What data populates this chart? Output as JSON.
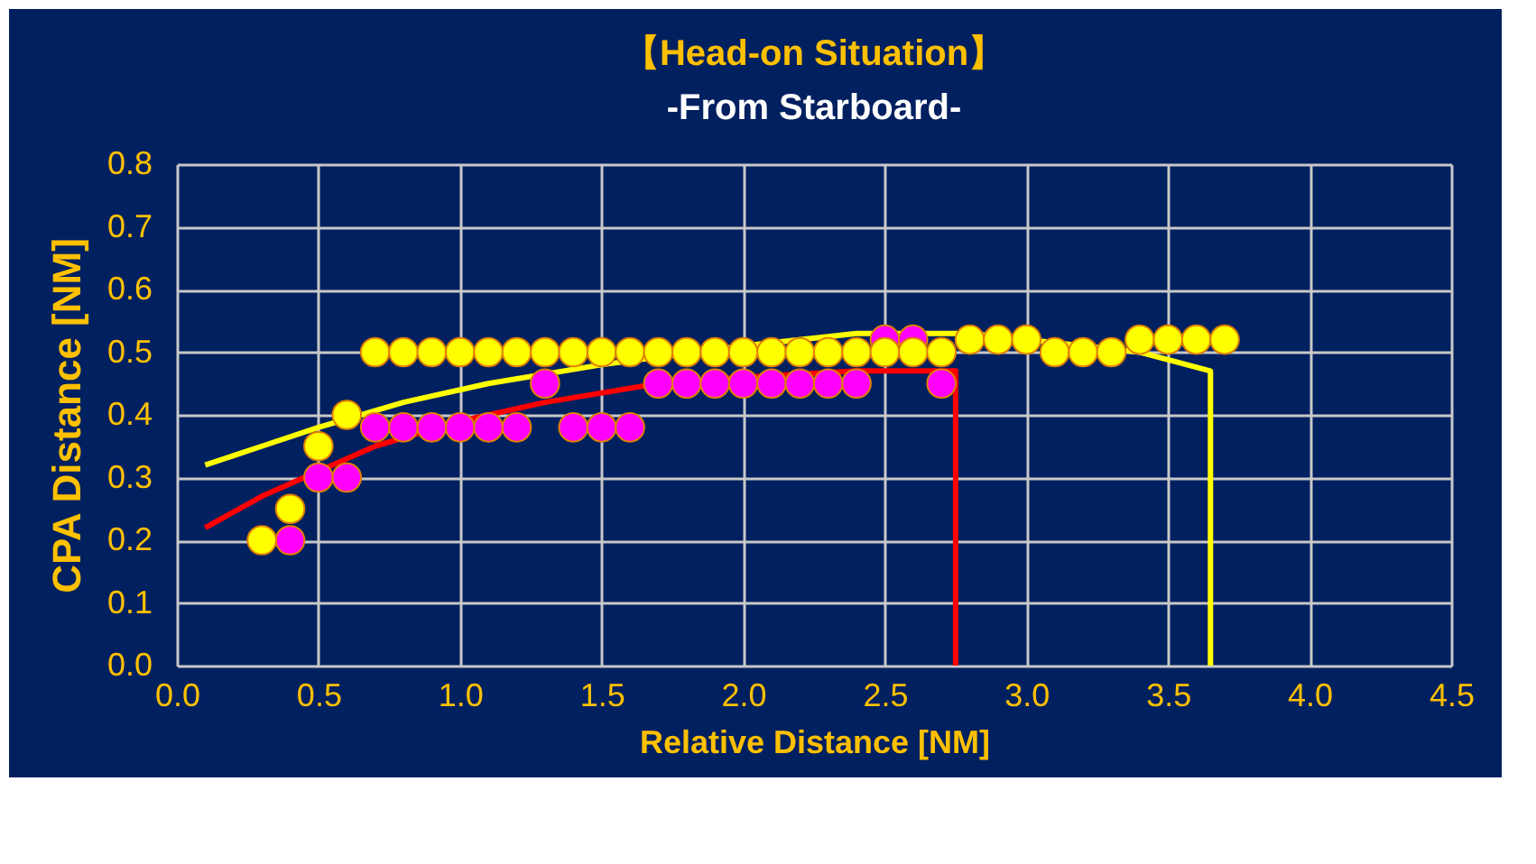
{
  "chart_data": {
    "type": "scatter",
    "title": "【Head-on Situation】",
    "subtitle": "-From Starboard-",
    "xlabel": "Relative Distance [NM]",
    "ylabel": "CPA Distance [NM]",
    "xlim": [
      0,
      4.5
    ],
    "xticks": [
      {
        "value": 0,
        "label": "0.0"
      },
      {
        "value": 0.5,
        "label": "0.5"
      },
      {
        "value": 1,
        "label": "1.0"
      },
      {
        "value": 1.5,
        "label": "1.5"
      },
      {
        "value": 2,
        "label": "2.0"
      },
      {
        "value": 2.5,
        "label": "2.5"
      },
      {
        "value": 3,
        "label": "3.0"
      },
      {
        "value": 3.5,
        "label": "3.5"
      },
      {
        "value": 4,
        "label": "4.0"
      },
      {
        "value": 4.5,
        "label": "4.5"
      }
    ],
    "ylim": [
      0,
      0.8
    ],
    "yticks": [
      {
        "value": 0,
        "label": "0.0"
      },
      0.1,
      0.2,
      0.3,
      0.4,
      0.5,
      0.6,
      0.7,
      0.8
    ],
    "grid": true,
    "marker": "circle",
    "series": [
      {
        "type": "line",
        "marker": "none",
        "color": "#ff0000",
        "x": [
          0.1,
          0.3,
          0.5,
          0.7,
          1.0,
          1.3,
          1.7,
          2.0,
          2.4,
          2.75,
          2.75
        ],
        "values": [
          0.22,
          0.27,
          0.31,
          0.35,
          0.39,
          0.42,
          0.45,
          0.46,
          0.47,
          0.47,
          0
        ]
      },
      {
        "type": "line",
        "marker": "none",
        "color": "#ffff00",
        "x": [
          0.1,
          0.3,
          0.5,
          0.8,
          1.1,
          1.5,
          2.0,
          2.4,
          2.8,
          3.0,
          3.4,
          3.65,
          3.65
        ],
        "values": [
          0.32,
          0.35,
          0.38,
          0.42,
          0.45,
          0.48,
          0.51,
          0.53,
          0.53,
          0.52,
          0.5,
          0.47,
          0
        ]
      },
      {
        "color": "#ff00ff",
        "x": [
          0.4,
          0.5,
          0.6,
          0.7,
          0.8,
          0.9,
          1.0,
          1.1,
          1.2,
          1.3,
          1.4,
          1.5,
          1.6,
          1.7,
          1.8,
          1.9,
          2.0,
          2.1,
          2.2,
          2.3,
          2.4,
          2.5,
          2.6,
          2.7
        ],
        "values": [
          0.2,
          0.3,
          0.3,
          0.38,
          0.38,
          0.38,
          0.38,
          0.38,
          0.38,
          0.45,
          0.38,
          0.38,
          0.38,
          0.45,
          0.45,
          0.45,
          0.45,
          0.45,
          0.45,
          0.45,
          0.45,
          0.52,
          0.52,
          0.45
        ]
      },
      {
        "color": "#ffff00",
        "x": [
          0.3,
          0.4,
          0.5,
          0.6,
          0.7,
          0.8,
          0.9,
          1.0,
          1.1,
          1.2,
          1.3,
          1.4,
          1.5,
          1.6,
          1.7,
          1.8,
          1.9,
          2.0,
          2.1,
          2.2,
          2.3,
          2.4,
          2.5,
          2.6,
          2.7,
          2.8,
          2.9,
          3.0,
          3.1,
          3.2,
          3.3,
          3.4,
          3.5,
          3.6,
          3.7
        ],
        "values": [
          0.2,
          0.25,
          0.35,
          0.4,
          0.5,
          0.5,
          0.5,
          0.5,
          0.5,
          0.5,
          0.5,
          0.5,
          0.5,
          0.5,
          0.5,
          0.5,
          0.5,
          0.5,
          0.5,
          0.5,
          0.5,
          0.5,
          0.5,
          0.5,
          0.5,
          0.52,
          0.52,
          0.52,
          0.5,
          0.5,
          0.5,
          0.52,
          0.52,
          0.52,
          0.52
        ]
      }
    ]
  }
}
